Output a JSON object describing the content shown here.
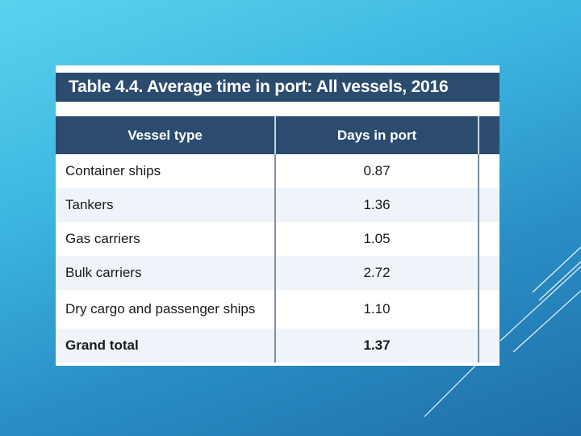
{
  "table": {
    "title": "Table 4.4. Average time in port: All vessels, 2016",
    "columns": [
      "Vessel type",
      "Days in port",
      ""
    ],
    "rows": [
      {
        "vessel": "Container ships",
        "days": "0.87"
      },
      {
        "vessel": "Tankers",
        "days": "1.36"
      },
      {
        "vessel": "Gas carriers",
        "days": "1.05"
      },
      {
        "vessel": "Bulk carriers",
        "days": "2.72"
      },
      {
        "vessel": "Dry cargo and passenger ships",
        "days": "1.10"
      },
      {
        "vessel": "Grand total",
        "days": "1.37"
      }
    ]
  },
  "colors": {
    "header_bg": "#2b4c6f",
    "alt_row_bg": "#eef4f9",
    "slide_bg_top": "#5ad2ee",
    "slide_bg_bottom": "#1f6fa8"
  }
}
